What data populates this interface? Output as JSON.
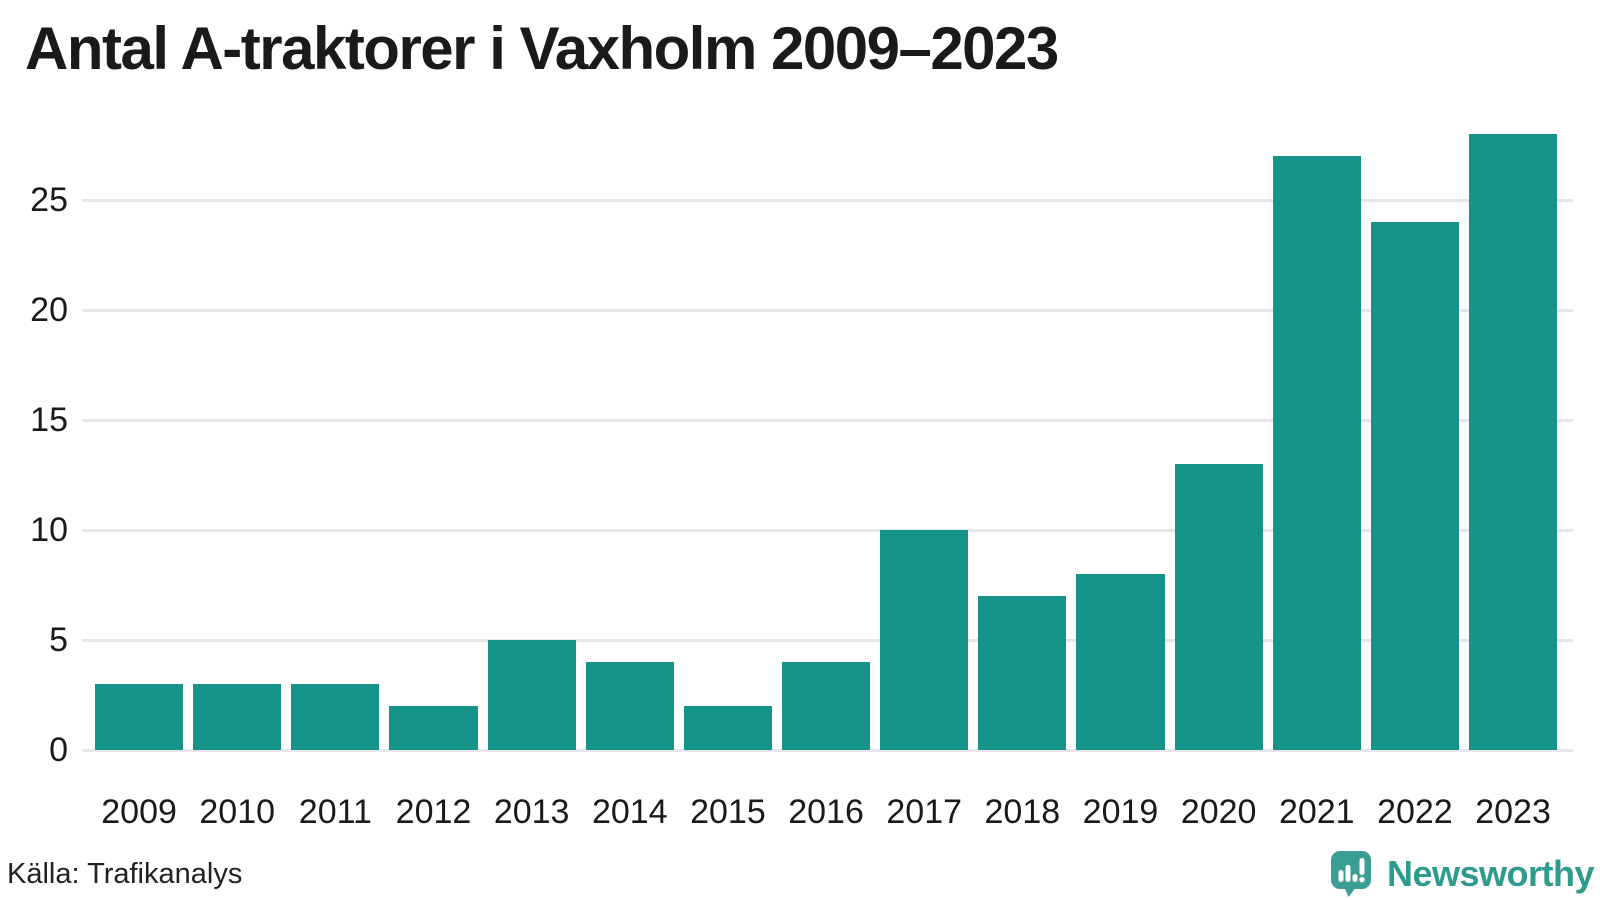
{
  "title": "Antal A-traktorer i Vaxholm 2009–2023",
  "source": "Källa: Trafikanalys",
  "brand": {
    "name": "Newsworthy",
    "logo_icon": "newsworthy-speech-bubble-bar-chart-icon"
  },
  "colors": {
    "bar": "#17948a",
    "gridline": "#e5e5ea",
    "title_text": "#1a1a1a",
    "axis_text": "#1a1a1a",
    "source_text": "#222222",
    "brand_teal": "#2f9a8e",
    "logo_teal": "#3a9e94"
  },
  "chart_data": {
    "type": "bar",
    "categories": [
      "2009",
      "2010",
      "2011",
      "2012",
      "2013",
      "2014",
      "2015",
      "2016",
      "2017",
      "2018",
      "2019",
      "2020",
      "2021",
      "2022",
      "2023"
    ],
    "values": [
      3,
      3,
      3,
      2,
      5,
      4,
      2,
      4,
      10,
      7,
      8,
      13,
      27,
      24,
      28
    ],
    "title": "Antal A-traktorer i Vaxholm 2009–2023",
    "xlabel": "",
    "ylabel": "",
    "ylim": [
      0,
      28
    ],
    "yticks": [
      0,
      5,
      10,
      15,
      20,
      25
    ],
    "grid": "horizontal",
    "legend": "none",
    "bar_color": "#17948a"
  }
}
